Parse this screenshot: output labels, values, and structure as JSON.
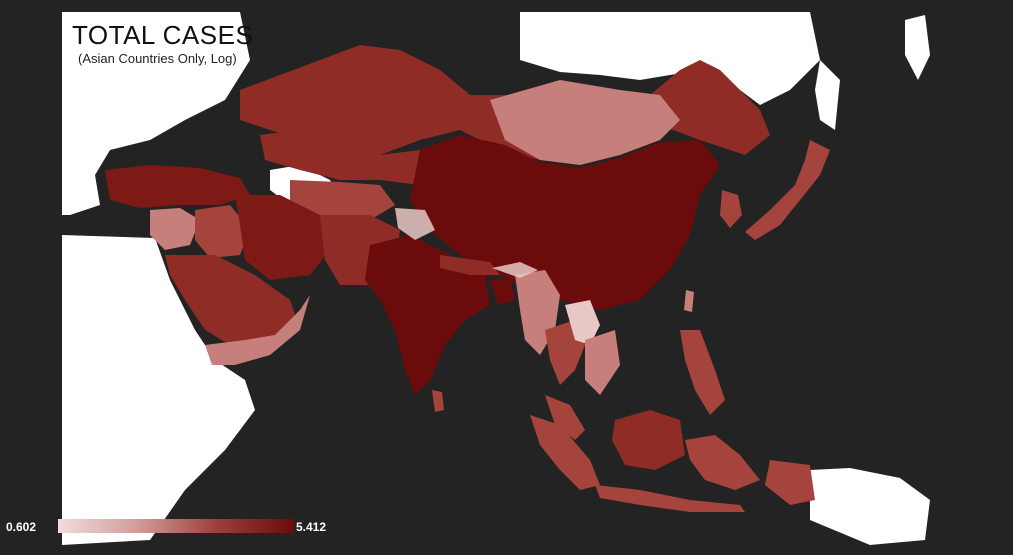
{
  "map": {
    "title": "TOTAL CASES",
    "subtitle": "(Asian Countries Only, Log)",
    "legend": {
      "min_label": "0.602",
      "max_label": "5.412",
      "low_color": "#f2dcdc",
      "high_color": "#6b0b0b"
    },
    "colors": {
      "ocean": "#232323",
      "non_asian_land": "#ffffff",
      "darkest": "#6b0b0b",
      "dark": "#7d1a16",
      "mid_dark": "#8f2c26",
      "mid": "#a5443d",
      "light": "#c67f7a",
      "lightest": "#e8c8c6"
    }
  }
}
